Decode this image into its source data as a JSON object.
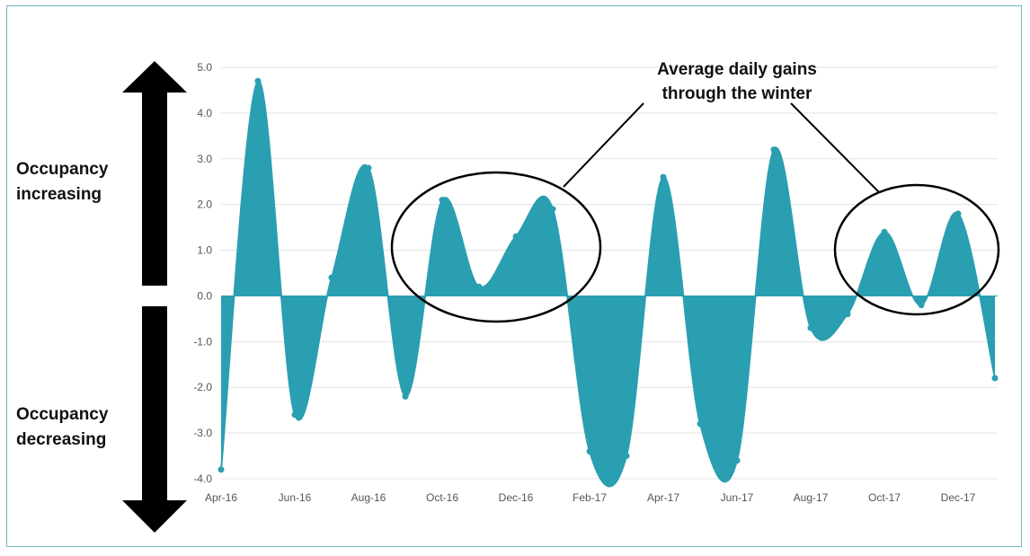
{
  "side_labels": {
    "up": [
      "Occupancy",
      "increasing"
    ],
    "down": [
      "Occupancy",
      "decreasing"
    ]
  },
  "annotation": [
    "Average daily gains",
    "through the winter"
  ],
  "colors": {
    "series": "#2a9fb1",
    "axis": "#e3e3e3",
    "frame": "#6fb8bd",
    "arrow": "#000000"
  },
  "chart_data": {
    "type": "area",
    "title": "",
    "xlabel": "",
    "ylabel": "",
    "ylim": [
      -4.0,
      5.0
    ],
    "yticks": [
      "5.0",
      "4.0",
      "3.0",
      "2.0",
      "1.0",
      "0.0",
      "-1.0",
      "-2.0",
      "-3.0",
      "-4.0"
    ],
    "xticks": [
      "Apr-16",
      "Jun-16",
      "Aug-16",
      "Oct-16",
      "Dec-16",
      "Feb-17",
      "Apr-17",
      "Jun-17",
      "Aug-17",
      "Oct-17",
      "Dec-17"
    ],
    "grid": true,
    "series": [
      {
        "values": [
          [
            "Apr-16",
            -3.8
          ],
          [
            "May-16",
            4.7
          ],
          [
            "Jun-16",
            -2.6
          ],
          [
            "Jul-16",
            0.4
          ],
          [
            "Aug-16",
            2.8
          ],
          [
            "Sep-16",
            -2.2
          ],
          [
            "Oct-16",
            2.1
          ],
          [
            "Nov-16",
            0.2
          ],
          [
            "Dec-16",
            1.3
          ],
          [
            "Jan-17",
            1.9
          ],
          [
            "Feb-17",
            -3.4
          ],
          [
            "Mar-17",
            -3.5
          ],
          [
            "Apr-17",
            2.6
          ],
          [
            "May-17",
            -2.8
          ],
          [
            "Jun-17",
            -3.6
          ],
          [
            "Jul-17",
            3.2
          ],
          [
            "Aug-17",
            -0.7
          ],
          [
            "Sep-17",
            -0.4
          ],
          [
            "Oct-17",
            1.4
          ],
          [
            "Nov-17",
            -0.2
          ],
          [
            "Dec-17",
            1.8
          ],
          [
            "Jan-18",
            -1.8
          ]
        ]
      }
    ]
  }
}
